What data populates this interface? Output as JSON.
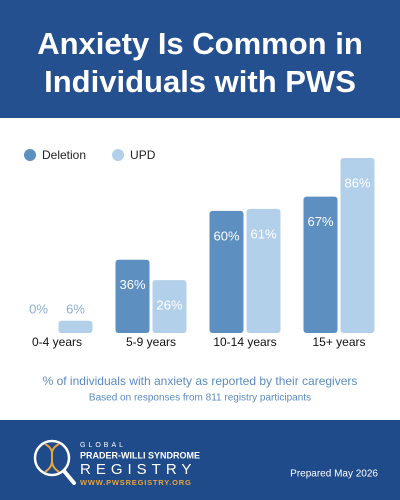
{
  "chart_data": {
    "type": "bar",
    "title": [
      "Anxiety Is Common in",
      "Individuals with PWS"
    ],
    "categories": [
      "0-4 years",
      "5-9 years",
      "10-14 years",
      "15+ years"
    ],
    "series": [
      {
        "name": "Deletion",
        "color": "#5d8fc0",
        "values": [
          0,
          36,
          60,
          67
        ],
        "value_labels": [
          "0%",
          "36%",
          "60%",
          "67%"
        ]
      },
      {
        "name": "UPD",
        "color": "#b3d0ea",
        "values": [
          6,
          26,
          61,
          86
        ],
        "value_labels": [
          "6%",
          "26%",
          "61%",
          "86%"
        ]
      }
    ],
    "caption": "% of individuals with anxiety as reported by their caregivers",
    "note": "Based on responses from 811 registry participants"
  },
  "footer": {
    "logo": [
      "GLOBAL",
      "PRADER-WILLI SYNDROME",
      "REGISTRY",
      "WWW.PWSREGISTRY.ORG"
    ],
    "prepared": "Prepared May 2026"
  }
}
